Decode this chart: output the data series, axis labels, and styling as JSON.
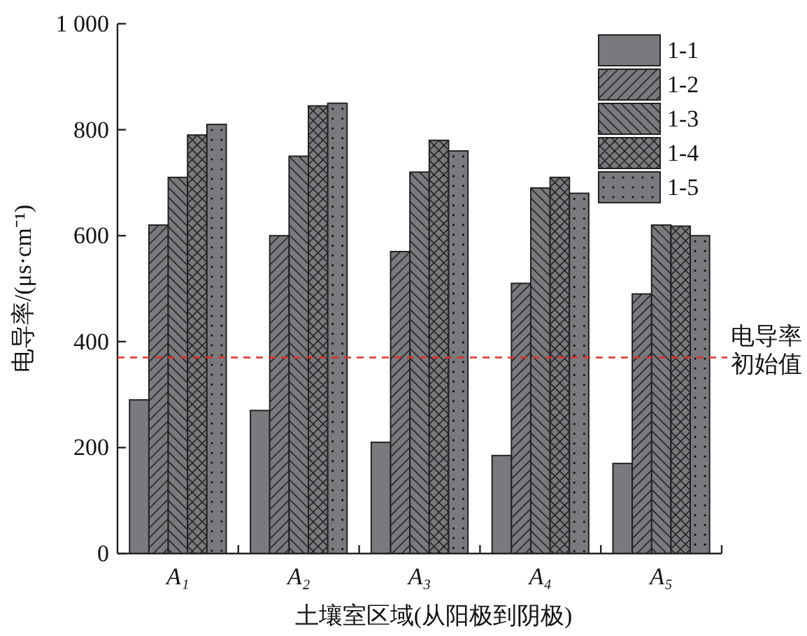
{
  "chart_data": {
    "type": "bar",
    "xlabel": "土壤室区域(从阳极到阴极)",
    "ylabel": "电导率/(μs·cm⁻¹)",
    "categories": [
      "A₁",
      "A₂",
      "A₃",
      "A₄",
      "A₅"
    ],
    "series": [
      {
        "name": "1-1",
        "color": "#7a7a7e",
        "values": [
          290,
          270,
          210,
          185,
          170
        ]
      },
      {
        "name": "1-2",
        "color": "#7a7a7e",
        "values": [
          620,
          600,
          570,
          510,
          490
        ]
      },
      {
        "name": "1-3",
        "color": "#7a7a7e",
        "values": [
          710,
          750,
          720,
          690,
          620
        ]
      },
      {
        "name": "1-4",
        "color": "#7a7a7e",
        "values": [
          790,
          845,
          780,
          710,
          618
        ]
      },
      {
        "name": "1-5",
        "color": "#7a7a7e",
        "values": [
          810,
          850,
          760,
          680,
          600
        ]
      }
    ],
    "ylim": [
      0,
      1000
    ],
    "yticks": [
      0,
      200,
      400,
      600,
      800,
      {
        "value": 1000,
        "label": "1 000"
      }
    ],
    "ref_lines": [
      {
        "axis": "y",
        "value": 370,
        "label": "电导率初始值",
        "color": "#e0302a",
        "line_style": "dashed"
      }
    ],
    "grid": false,
    "legend": "top right"
  }
}
